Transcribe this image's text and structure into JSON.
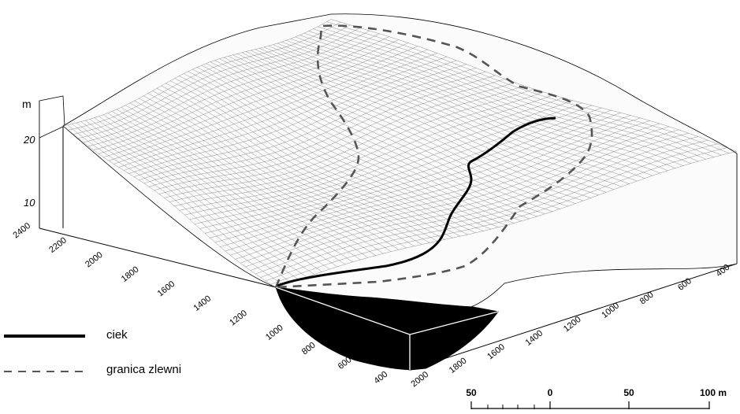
{
  "vertical_axis": {
    "unit": "m",
    "ticks": [
      "20",
      "10"
    ]
  },
  "left_axis_ticks": [
    "2400",
    "2200",
    "2000",
    "1800",
    "1600",
    "1400",
    "1200",
    "1000",
    "800",
    "600",
    "400"
  ],
  "right_axis_ticks": [
    "2000",
    "1800",
    "1600",
    "1400",
    "1200",
    "1000",
    "800",
    "600",
    "400"
  ],
  "legend": {
    "stream_label": "ciek",
    "boundary_label": "granica zlewni"
  },
  "scale_bar": {
    "labels": [
      "50",
      "0",
      "50",
      "100 m"
    ]
  }
}
